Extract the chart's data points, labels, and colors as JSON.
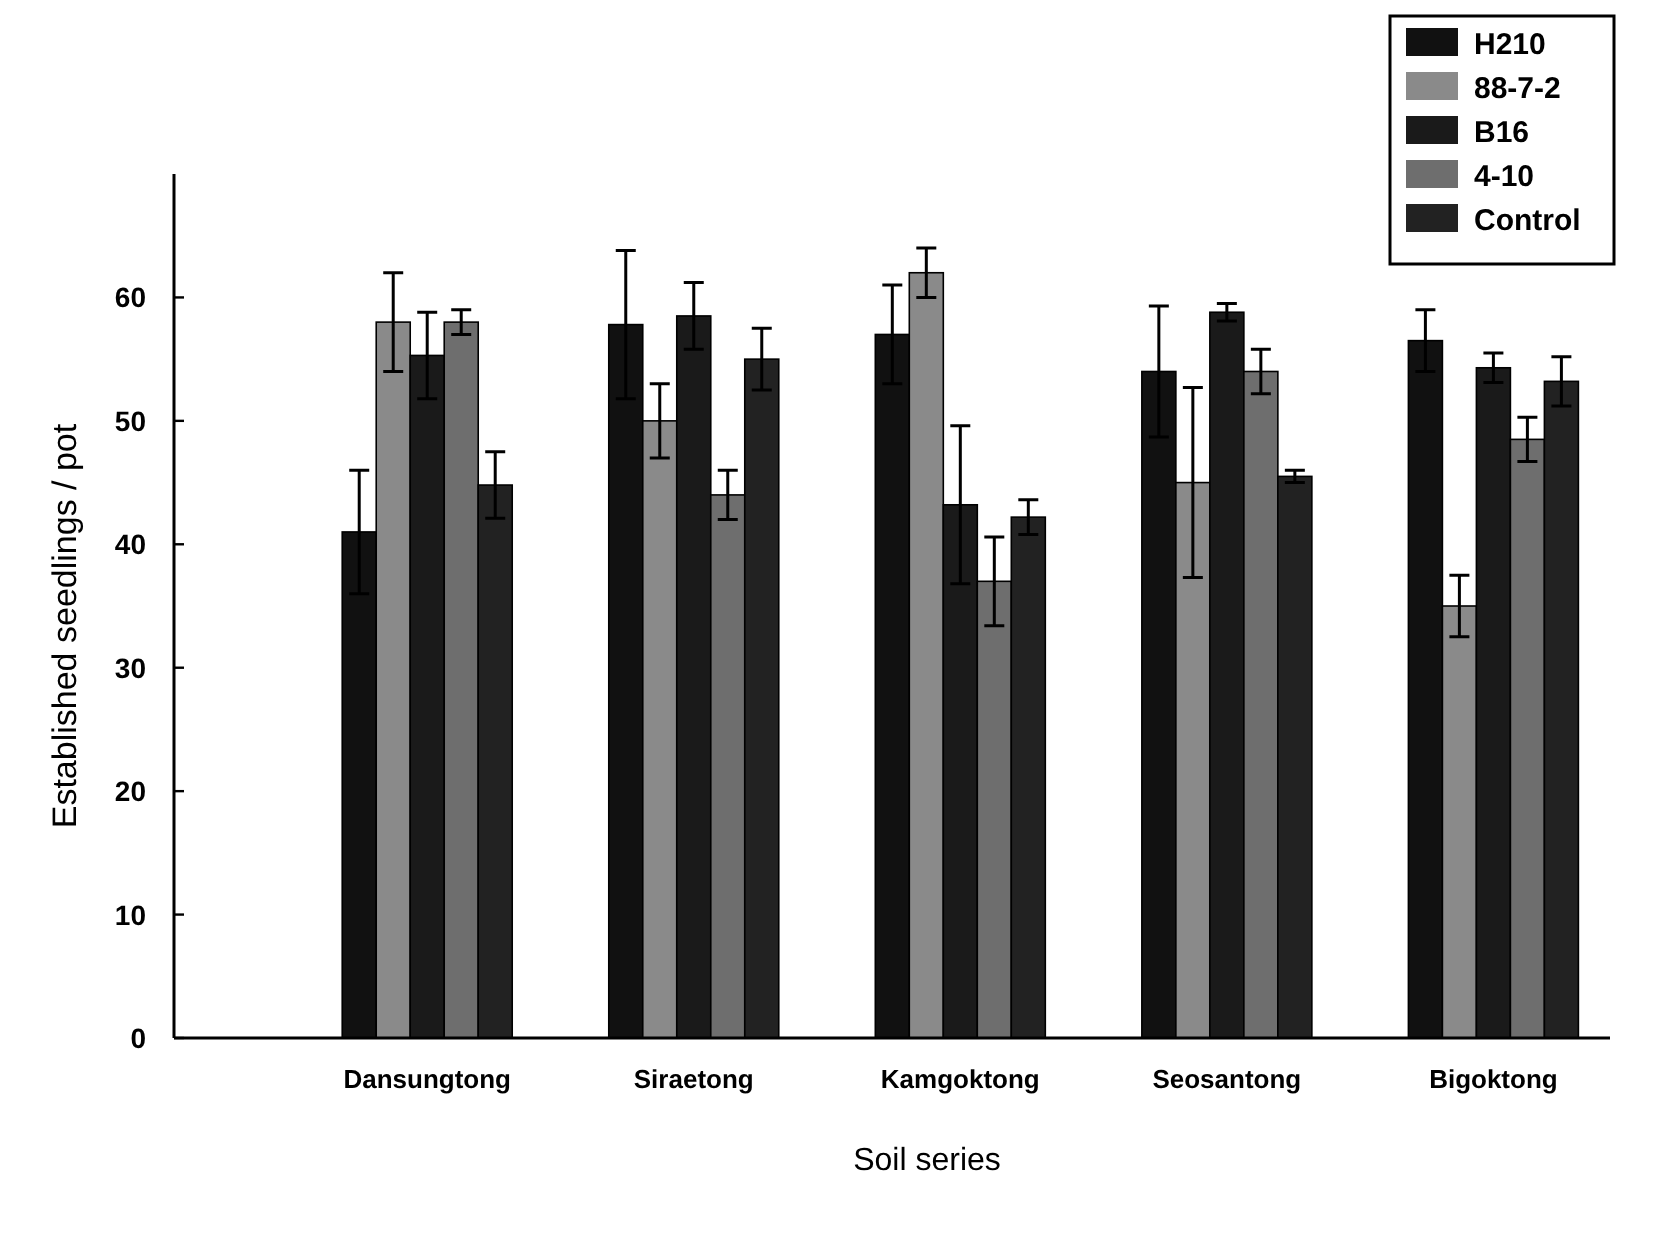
{
  "chart_data": {
    "type": "bar",
    "xlabel": "Soil series",
    "ylabel": "Established seedlings / pot",
    "categories": [
      "Dansungtong",
      "Siraetong",
      "Kamgoktong",
      "Seosantong",
      "Bigoktong"
    ],
    "series": [
      {
        "name": "H210",
        "color": "#111111",
        "values": [
          41,
          57.8,
          57,
          54,
          56.5
        ],
        "errors": [
          5,
          6,
          4,
          5.3,
          2.5
        ]
      },
      {
        "name": "88-7-2",
        "color": "#8a8a8a",
        "values": [
          58,
          50,
          62,
          45,
          35
        ],
        "errors": [
          4,
          3,
          2,
          7.7,
          2.5
        ]
      },
      {
        "name": "B16",
        "color": "#1a1a1a",
        "values": [
          55.3,
          58.5,
          43.2,
          58.8,
          54.3
        ],
        "errors": [
          3.5,
          2.7,
          6.4,
          0.7,
          1.2
        ]
      },
      {
        "name": "4-10",
        "color": "#6e6e6e",
        "values": [
          58,
          44,
          37,
          54,
          48.5
        ],
        "errors": [
          1,
          2,
          3.6,
          1.8,
          1.8
        ]
      },
      {
        "name": "Control",
        "color": "#222222",
        "values": [
          44.8,
          55,
          42.2,
          45.5,
          53.2
        ],
        "errors": [
          2.7,
          2.5,
          1.4,
          0.5,
          2
        ]
      }
    ],
    "ylim": [
      0,
      70
    ],
    "yticks": [
      0,
      10,
      20,
      30,
      40,
      50,
      60
    ],
    "grid": false,
    "legend": "top right"
  }
}
